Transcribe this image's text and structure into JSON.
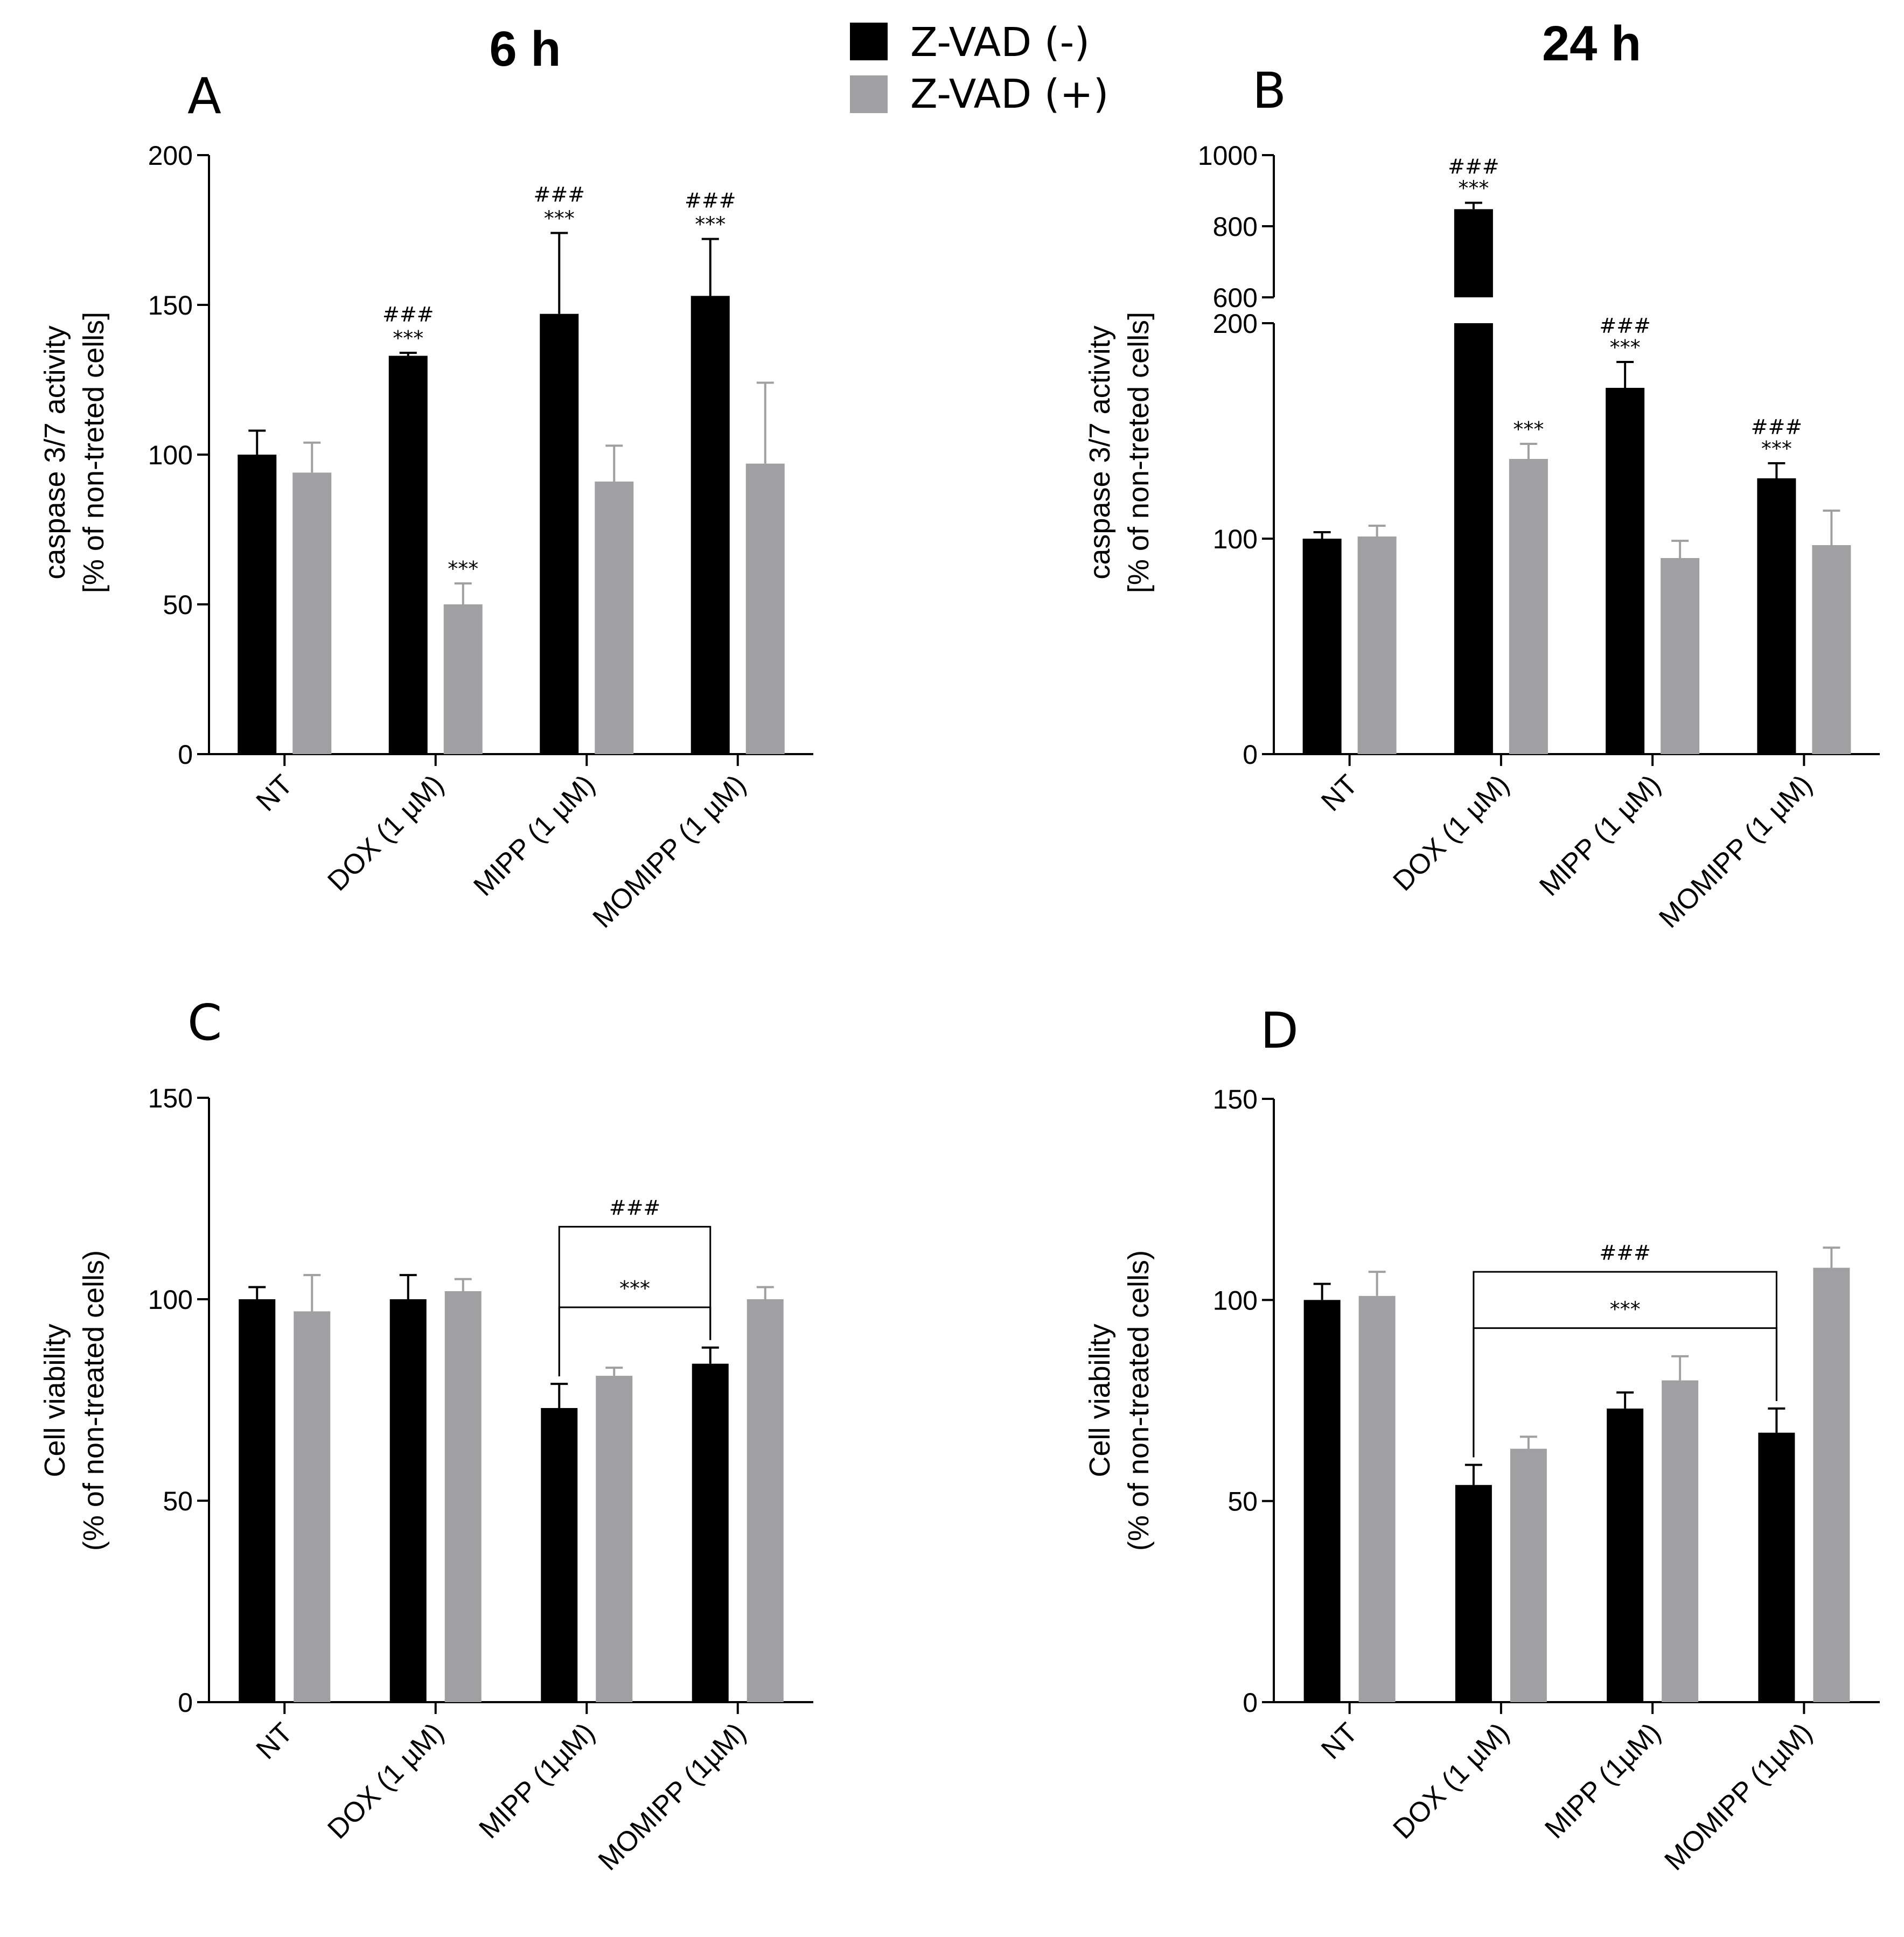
{
  "headers": {
    "left": "6 h",
    "right": "24 h"
  },
  "legend": [
    {
      "label": "Z-VAD (-)",
      "color": "#000000"
    },
    {
      "label": "Z-VAD (+)",
      "color": "#a0a0a2"
    }
  ],
  "colors": {
    "zvad_minus": "#000000",
    "zvad_plus": "#a0a0a2",
    "axis": "#000000"
  },
  "chart_data": [
    {
      "panel": "A",
      "type": "bar",
      "ylabel_line1": "caspase 3/7 activity",
      "ylabel_line2": "[% of non-treted cells]",
      "ylim": [
        0,
        200
      ],
      "yticks": [
        "0",
        "50",
        "100",
        "150",
        "200"
      ],
      "categories": [
        "NT",
        "DOX (1 µM)",
        "MIPP (1 µM)",
        "MOMIPP (1 µM)"
      ],
      "series": [
        {
          "name": "Z-VAD (-)",
          "values": [
            100,
            133,
            147,
            153
          ],
          "errors": [
            8,
            1,
            27,
            19
          ]
        },
        {
          "name": "Z-VAD (+)",
          "values": [
            94,
            50,
            91,
            97
          ],
          "errors": [
            10,
            7,
            12,
            27
          ]
        }
      ],
      "annotations": [
        {
          "category": 1,
          "series": 0,
          "lines": [
            "###",
            "***"
          ]
        },
        {
          "category": 1,
          "series": 1,
          "lines": [
            "***"
          ]
        },
        {
          "category": 2,
          "series": 0,
          "lines": [
            "###",
            "***"
          ]
        },
        {
          "category": 3,
          "series": 0,
          "lines": [
            "###",
            "***"
          ]
        }
      ]
    },
    {
      "panel": "B",
      "type": "bar",
      "ylabel_line1": "caspase 3/7 activity",
      "ylabel_line2": "[% of non-treted cells]",
      "y_break": {
        "lower_range": [
          0,
          200
        ],
        "upper_range": [
          600,
          1000
        ]
      },
      "yticks_lower": [
        "0",
        "100",
        "200"
      ],
      "yticks_upper": [
        "600",
        "800",
        "1000"
      ],
      "categories": [
        "NT",
        "DOX (1 µM)",
        "MIPP (1 µM)",
        "MOMIPP (1 µM)"
      ],
      "series": [
        {
          "name": "Z-VAD (-)",
          "values": [
            100,
            848,
            170,
            128
          ],
          "errors": [
            3,
            18,
            12,
            7
          ]
        },
        {
          "name": "Z-VAD (+)",
          "values": [
            101,
            137,
            91,
            97
          ],
          "errors": [
            5,
            7,
            8,
            16
          ]
        }
      ],
      "annotations": [
        {
          "category": 1,
          "series": 0,
          "lines": [
            "###",
            "***"
          ]
        },
        {
          "category": 1,
          "series": 1,
          "lines": [
            "***"
          ]
        },
        {
          "category": 2,
          "series": 0,
          "lines": [
            "###",
            "***"
          ]
        },
        {
          "category": 3,
          "series": 0,
          "lines": [
            "###",
            "***"
          ]
        }
      ]
    },
    {
      "panel": "C",
      "type": "bar",
      "ylabel_line1": "Cell viability",
      "ylabel_line2": "(% of non-treated cells)",
      "ylim": [
        0,
        150
      ],
      "yticks": [
        "0",
        "50",
        "100",
        "150"
      ],
      "categories": [
        "NT",
        "DOX (1 µM)",
        "MIPP (1µM)",
        "MOMIPP (1µM)"
      ],
      "series": [
        {
          "name": "Z-VAD (-)",
          "values": [
            100,
            100,
            73,
            84
          ],
          "errors": [
            3,
            6,
            6,
            4
          ]
        },
        {
          "name": "Z-VAD (+)",
          "values": [
            97,
            102,
            81,
            100
          ],
          "errors": [
            9,
            3,
            2,
            3
          ]
        }
      ],
      "brackets": [
        {
          "from_category": 2,
          "to_category": 3,
          "level": 118,
          "label": "###"
        },
        {
          "from_category": 2,
          "to_category": 3,
          "level": 98,
          "label": "***"
        }
      ]
    },
    {
      "panel": "D",
      "type": "bar",
      "ylabel_line1": "Cell viability",
      "ylabel_line2": "(% of non-treated cells)",
      "ylim": [
        0,
        150
      ],
      "yticks": [
        "0",
        "50",
        "100",
        "150"
      ],
      "categories": [
        "NT",
        "DOX (1 µM)",
        "MIPP (1µM)",
        "MOMIPP (1µM)"
      ],
      "series": [
        {
          "name": "Z-VAD (-)",
          "values": [
            100,
            54,
            73,
            67
          ],
          "errors": [
            4,
            5,
            4,
            6
          ]
        },
        {
          "name": "Z-VAD (+)",
          "values": [
            101,
            63,
            80,
            108
          ],
          "errors": [
            6,
            3,
            6,
            5
          ]
        }
      ],
      "brackets": [
        {
          "from_category": 1,
          "to_category": 3,
          "level": 107,
          "label": "###"
        },
        {
          "from_category": 1,
          "to_category": 3,
          "level": 93,
          "label": "***"
        }
      ]
    }
  ]
}
